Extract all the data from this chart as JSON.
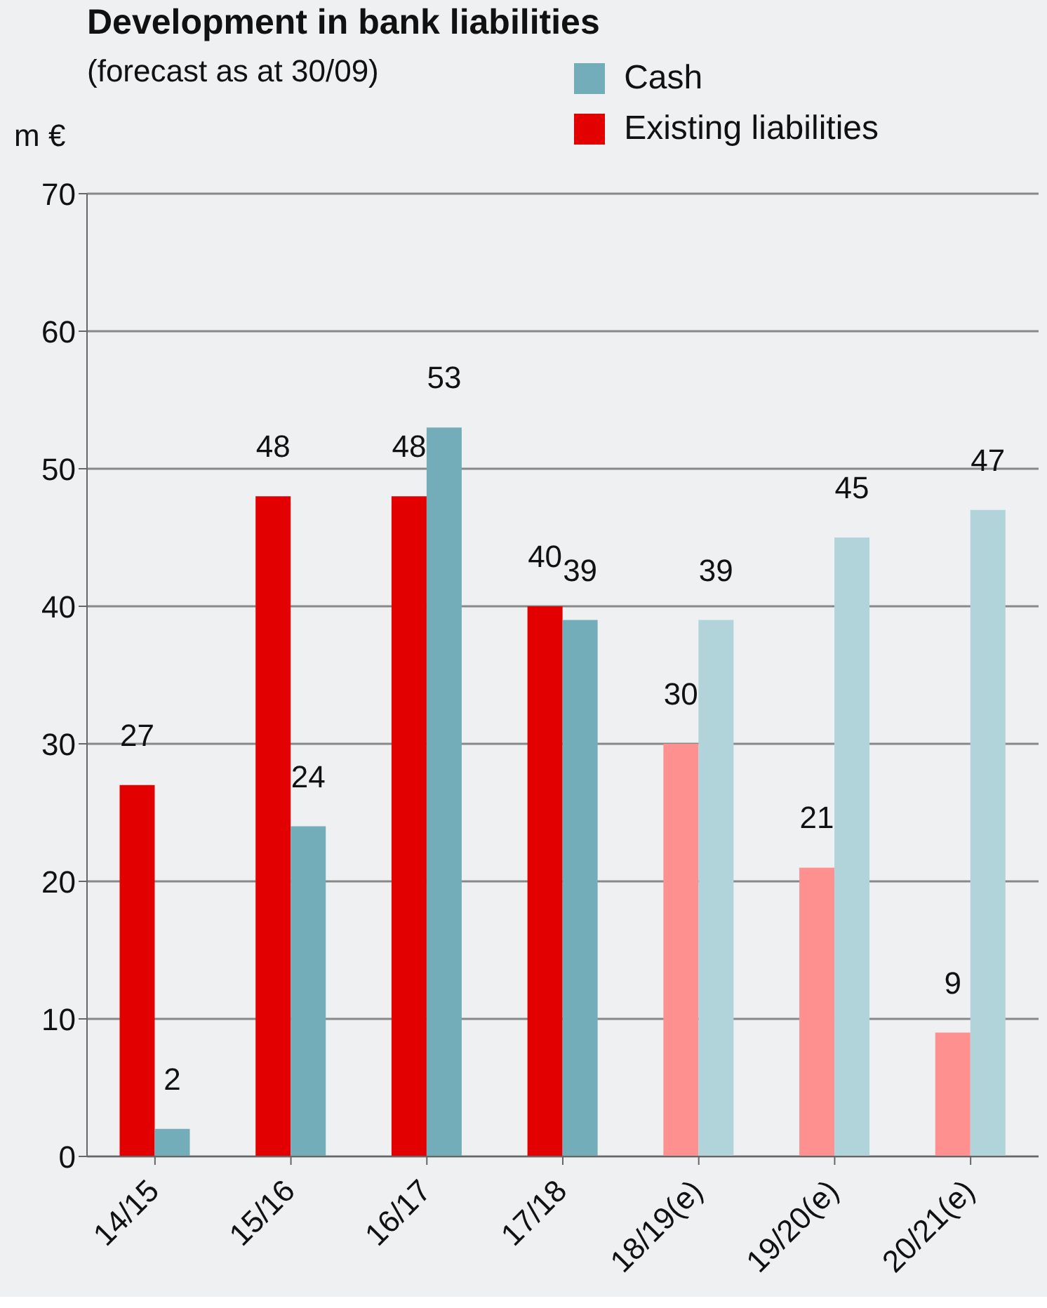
{
  "chart_data": {
    "type": "bar",
    "title": "Development in bank liabilities",
    "subtitle": "(forecast as at 30/09)",
    "ylabel": "m €",
    "categories": [
      "14/15",
      "15/16",
      "16/17",
      "17/18",
      "18/19(e)",
      "19/20(e)",
      "20/21(e)"
    ],
    "series": [
      {
        "name": "Existing liabilities",
        "color": "#e30000",
        "colors": [
          "#e30000",
          "#e30000",
          "#e30000",
          "#e30000",
          "#ff9090",
          "#ff9090",
          "#ff9090"
        ],
        "values": [
          27,
          48,
          48,
          40,
          30,
          21,
          9
        ]
      },
      {
        "name": "Cash",
        "color": "#73adb9",
        "colors": [
          "#73adb9",
          "#73adb9",
          "#73adb9",
          "#73adb9",
          "#b0d4da",
          "#b0d4da",
          "#b0d4da"
        ],
        "values": [
          2,
          24,
          53,
          39,
          39,
          45,
          47
        ]
      }
    ],
    "ylim": [
      0,
      70
    ],
    "yticks": [
      0,
      10,
      20,
      30,
      40,
      50,
      60,
      70
    ],
    "grid": "y",
    "legend": "top right",
    "data_labels": true
  }
}
